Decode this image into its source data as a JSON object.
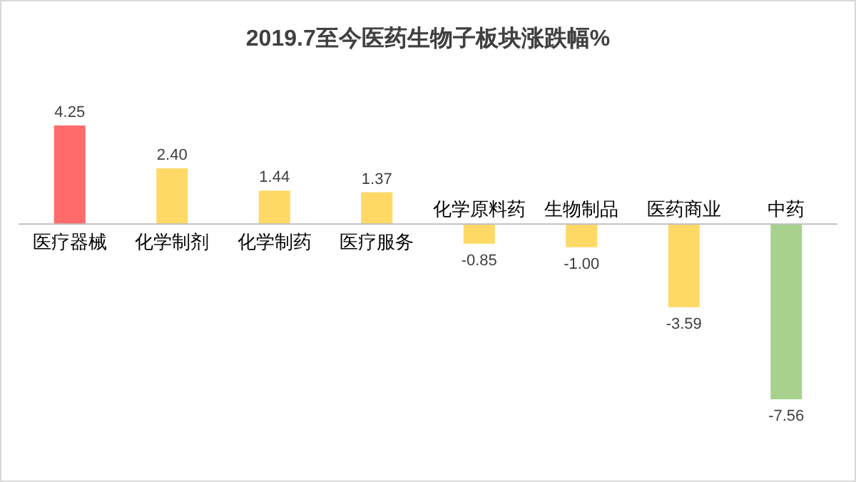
{
  "chart_data": {
    "type": "bar",
    "title": "2019.7至今医药生物子板块涨跌幅%",
    "categories": [
      "医疗器械",
      "化学制剂",
      "化学制药",
      "医疗服务",
      "化学原料药",
      "生物制品",
      "医药商业",
      "中药"
    ],
    "values": [
      4.25,
      2.4,
      1.44,
      1.37,
      -0.85,
      -1.0,
      -3.59,
      -7.56
    ],
    "colors": [
      "#ff6b6b",
      "#ffd966",
      "#ffd966",
      "#ffd966",
      "#ffd966",
      "#ffd966",
      "#ffd966",
      "#a9d18e"
    ],
    "value_labels": [
      "4.25",
      "2.40",
      "1.44",
      "1.37",
      "-0.85",
      "-1.00",
      "-3.59",
      "-7.56"
    ]
  }
}
